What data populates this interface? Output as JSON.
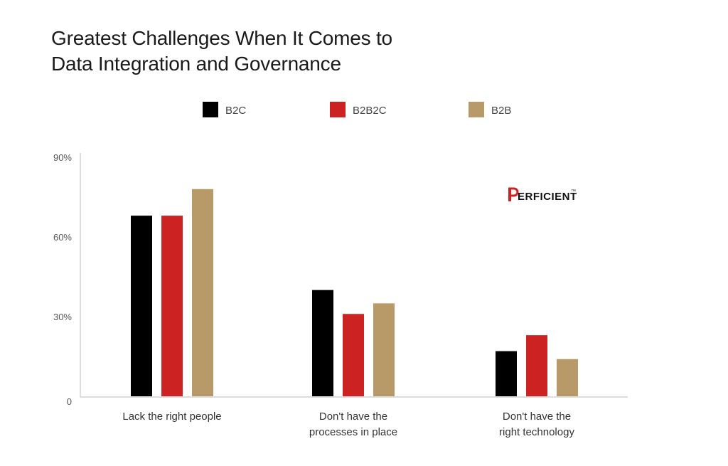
{
  "chart_data": {
    "type": "bar",
    "title_lines": [
      "Greatest Challenges When It Comes to",
      "Data Integration and Governance"
    ],
    "categories": [
      [
        "Lack the right people"
      ],
      [
        "Don't have the",
        "processes in place"
      ],
      [
        "Don't have the",
        "right technology"
      ]
    ],
    "series": [
      {
        "name": "B2C",
        "color": "#000000",
        "values": [
          68,
          40,
          17
        ]
      },
      {
        "name": "B2B2C",
        "color": "#cc2222",
        "values": [
          68,
          31,
          23
        ]
      },
      {
        "name": "B2B",
        "color": "#b89a68",
        "values": [
          78,
          35,
          14
        ]
      }
    ],
    "ylim": [
      0,
      90
    ],
    "yticks": [
      0,
      30,
      60,
      90
    ],
    "ytick_labels": [
      "0",
      "30%",
      "60%",
      "90%"
    ],
    "grid": false,
    "legend_position": "top"
  },
  "logo": {
    "text": "ERFICIENT",
    "mark": "P",
    "trademark": "™",
    "brand_color": "#cc2222"
  }
}
